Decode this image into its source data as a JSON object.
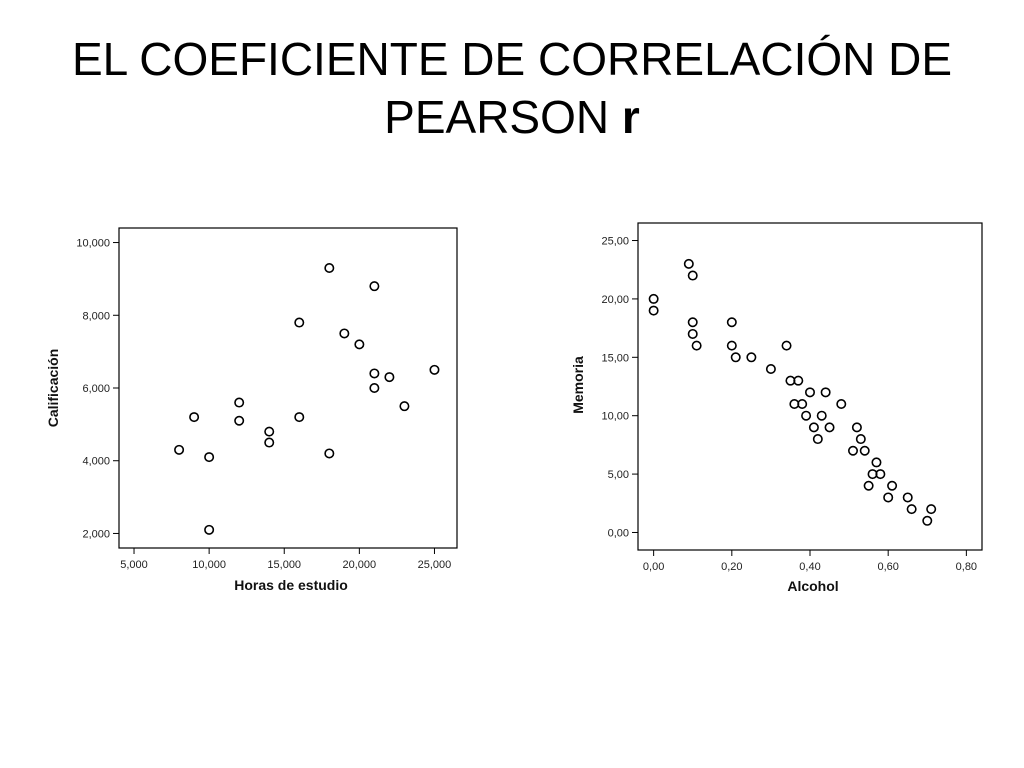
{
  "slide": {
    "title_main": "EL COEFICIENTE DE CORRELACIÓN DE PEARSON ",
    "title_bold": "r"
  },
  "chart_data": [
    {
      "type": "scatter",
      "xlabel": "Horas de estudio",
      "ylabel": "Calificación",
      "xlim": [
        4.0,
        26.5
      ],
      "ylim": [
        1.6,
        10.4
      ],
      "xticks": [
        5,
        10,
        15,
        20,
        25
      ],
      "xtick_labels": [
        "5,000",
        "10,000",
        "15,000",
        "20,000",
        "25,000"
      ],
      "yticks": [
        2,
        4,
        6,
        8,
        10
      ],
      "ytick_labels": [
        "2,000",
        "4,000",
        "6,000",
        "8,000",
        "10,000"
      ],
      "grid": false,
      "points": [
        {
          "x": 8,
          "y": 4.3
        },
        {
          "x": 9,
          "y": 5.2
        },
        {
          "x": 10,
          "y": 4.1
        },
        {
          "x": 10,
          "y": 2.1
        },
        {
          "x": 12,
          "y": 5.6
        },
        {
          "x": 12,
          "y": 5.1
        },
        {
          "x": 14,
          "y": 4.8
        },
        {
          "x": 14,
          "y": 4.5
        },
        {
          "x": 16,
          "y": 7.8
        },
        {
          "x": 16,
          "y": 5.2
        },
        {
          "x": 18,
          "y": 9.3
        },
        {
          "x": 18,
          "y": 4.2
        },
        {
          "x": 19,
          "y": 7.5
        },
        {
          "x": 20,
          "y": 7.2
        },
        {
          "x": 21,
          "y": 8.8
        },
        {
          "x": 21,
          "y": 6.4
        },
        {
          "x": 21,
          "y": 6.0
        },
        {
          "x": 22,
          "y": 6.3
        },
        {
          "x": 23,
          "y": 5.5
        },
        {
          "x": 25,
          "y": 6.5
        }
      ]
    },
    {
      "type": "scatter",
      "xlabel": "Alcohol",
      "ylabel": "Memoria",
      "xlim": [
        -0.04,
        0.84
      ],
      "ylim": [
        -1.5,
        26.5
      ],
      "xticks": [
        0,
        0.2,
        0.4,
        0.6,
        0.8
      ],
      "xtick_labels": [
        "0,00",
        "0,20",
        "0,40",
        "0,60",
        "0,80"
      ],
      "yticks": [
        0,
        5,
        10,
        15,
        20,
        25
      ],
      "ytick_labels": [
        "0,00",
        "5,00",
        "10,00",
        "15,00",
        "20,00",
        "25,00"
      ],
      "grid": false,
      "points": [
        {
          "x": 0.0,
          "y": 20
        },
        {
          "x": 0.0,
          "y": 19
        },
        {
          "x": 0.09,
          "y": 23
        },
        {
          "x": 0.1,
          "y": 22
        },
        {
          "x": 0.1,
          "y": 18
        },
        {
          "x": 0.1,
          "y": 17
        },
        {
          "x": 0.11,
          "y": 16
        },
        {
          "x": 0.2,
          "y": 18
        },
        {
          "x": 0.2,
          "y": 16
        },
        {
          "x": 0.21,
          "y": 15
        },
        {
          "x": 0.25,
          "y": 15
        },
        {
          "x": 0.3,
          "y": 14
        },
        {
          "x": 0.34,
          "y": 16
        },
        {
          "x": 0.35,
          "y": 13
        },
        {
          "x": 0.37,
          "y": 13
        },
        {
          "x": 0.36,
          "y": 11
        },
        {
          "x": 0.38,
          "y": 11
        },
        {
          "x": 0.4,
          "y": 12
        },
        {
          "x": 0.39,
          "y": 10
        },
        {
          "x": 0.41,
          "y": 9
        },
        {
          "x": 0.42,
          "y": 8
        },
        {
          "x": 0.43,
          "y": 10
        },
        {
          "x": 0.44,
          "y": 12
        },
        {
          "x": 0.45,
          "y": 9
        },
        {
          "x": 0.48,
          "y": 11
        },
        {
          "x": 0.52,
          "y": 9
        },
        {
          "x": 0.53,
          "y": 8
        },
        {
          "x": 0.51,
          "y": 7
        },
        {
          "x": 0.54,
          "y": 7
        },
        {
          "x": 0.57,
          "y": 6
        },
        {
          "x": 0.56,
          "y": 5
        },
        {
          "x": 0.58,
          "y": 5
        },
        {
          "x": 0.55,
          "y": 4
        },
        {
          "x": 0.61,
          "y": 4
        },
        {
          "x": 0.6,
          "y": 3
        },
        {
          "x": 0.65,
          "y": 3
        },
        {
          "x": 0.66,
          "y": 2
        },
        {
          "x": 0.7,
          "y": 1
        },
        {
          "x": 0.71,
          "y": 2
        }
      ]
    }
  ]
}
